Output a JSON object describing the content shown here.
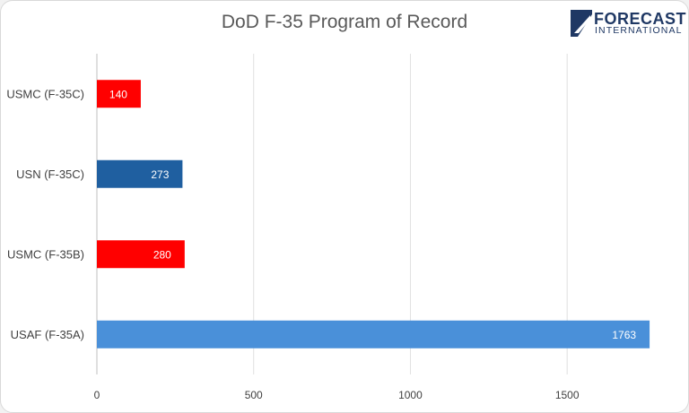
{
  "chart_data": {
    "type": "bar",
    "orientation": "horizontal",
    "title": "DoD F-35 Program of Record",
    "categories": [
      "USMC (F-35C)",
      "USN (F-35C)",
      "USMC (F-35B)",
      "USAF (F-35A)"
    ],
    "values": [
      140,
      273,
      280,
      1763
    ],
    "bar_colors": [
      "#ff0000",
      "#1f5fa0",
      "#ff0000",
      "#4a90d9"
    ],
    "xlim": [
      0,
      1800
    ],
    "xticks": [
      0,
      500,
      1000,
      1500
    ],
    "xlabel": "",
    "ylabel": "",
    "grid": "vertical",
    "data_labels": true
  },
  "logo": {
    "line1": "FORECAST",
    "line2": "INTERNATIONAL",
    "color": "#1f3864"
  }
}
